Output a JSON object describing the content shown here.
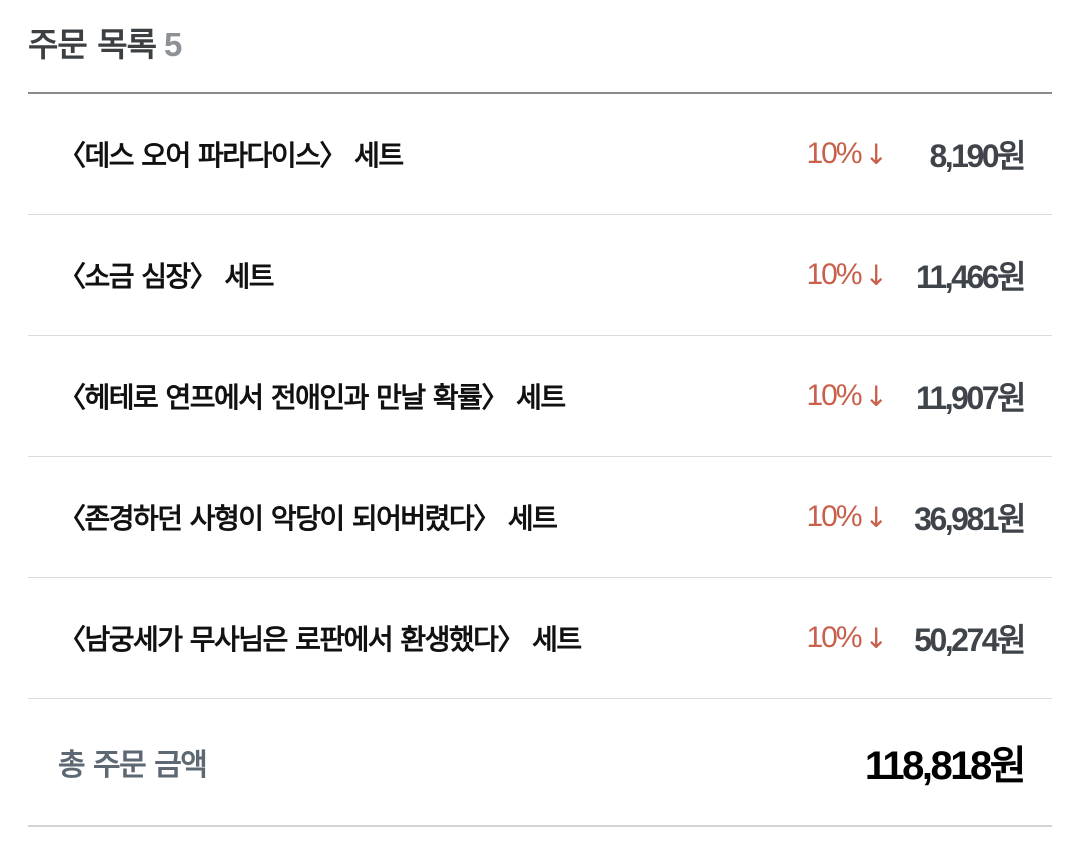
{
  "header": {
    "title": "주문 목록",
    "count": "5"
  },
  "colors": {
    "discount": "#c8604c",
    "price": "#3f444a"
  },
  "items": [
    {
      "name": "〈데스 오어 파라다이스〉 세트",
      "discount": "10%",
      "price": "8,190원"
    },
    {
      "name": "〈소금 심장〉 세트",
      "discount": "10%",
      "price": "11,466원"
    },
    {
      "name": "〈헤테로 연프에서 전애인과 만날 확률〉 세트",
      "discount": "10%",
      "price": "11,907원"
    },
    {
      "name": "〈존경하던 사형이 악당이 되어버렸다〉 세트",
      "discount": "10%",
      "price": "36,981원"
    },
    {
      "name": "〈남궁세가 무사님은 로판에서 환생했다〉 세트",
      "discount": "10%",
      "price": "50,274원"
    }
  ],
  "total": {
    "label": "총 주문 금액",
    "price": "118,818원"
  }
}
